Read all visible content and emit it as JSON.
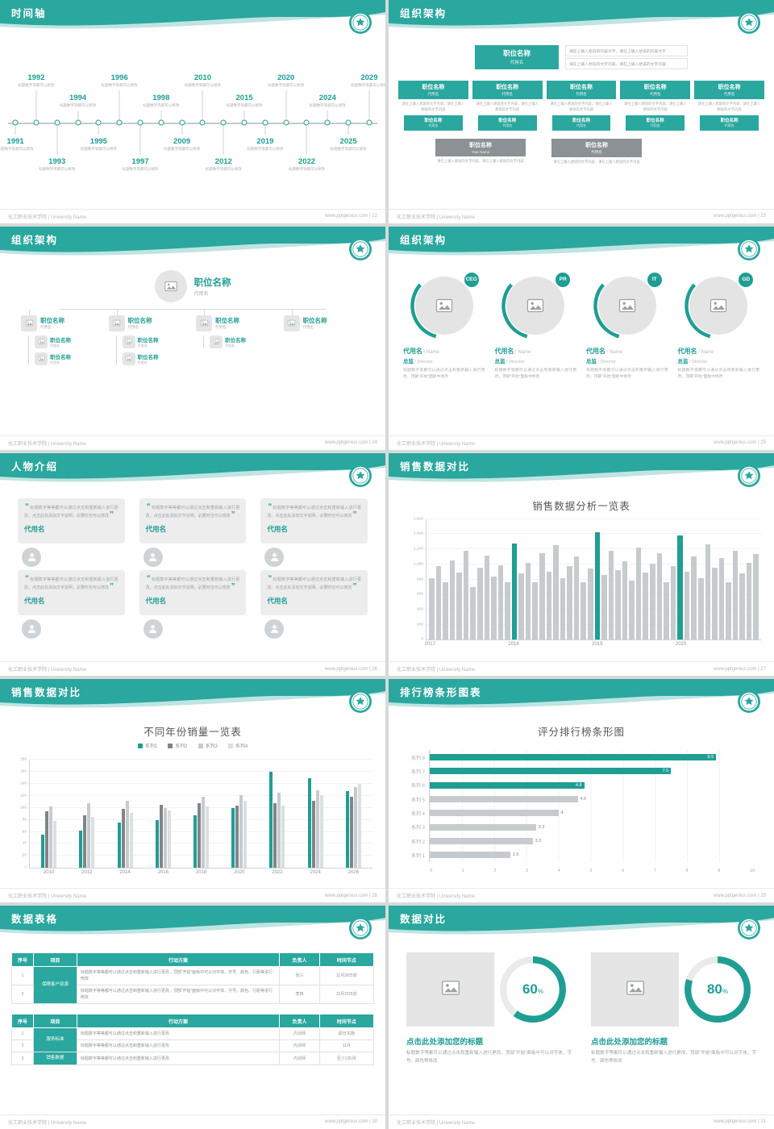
{
  "theme": {
    "teal": "#1f9e93",
    "teal_header": "#2aa79e",
    "gray_bar": "#c7cbcd",
    "gray_dark": "#808588",
    "gray_light": "#dcdfe0"
  },
  "footer": {
    "school": "化工职业技术学院 | University Name",
    "site": "www.pptgenius.com"
  },
  "slides": {
    "s22": {
      "title": "时间轴",
      "page": "22",
      "caption": "标题数字等都可以修改",
      "entries": [
        {
          "year": "1991",
          "side": "bottom",
          "level": 1
        },
        {
          "year": "1992",
          "side": "top",
          "level": 2
        },
        {
          "year": "1993",
          "side": "bottom",
          "level": 2
        },
        {
          "year": "1994",
          "side": "top",
          "level": 1
        },
        {
          "year": "1995",
          "side": "bottom",
          "level": 1
        },
        {
          "year": "1996",
          "side": "top",
          "level": 2
        },
        {
          "year": "1997",
          "side": "bottom",
          "level": 2
        },
        {
          "year": "1998",
          "side": "top",
          "level": 1
        },
        {
          "year": "2009",
          "side": "bottom",
          "level": 1
        },
        {
          "year": "2010",
          "side": "top",
          "level": 2
        },
        {
          "year": "2012",
          "side": "bottom",
          "level": 2
        },
        {
          "year": "2015",
          "side": "top",
          "level": 1
        },
        {
          "year": "2019",
          "side": "bottom",
          "level": 1
        },
        {
          "year": "2020",
          "side": "top",
          "level": 2
        },
        {
          "year": "2022",
          "side": "bottom",
          "level": 2
        },
        {
          "year": "2024",
          "side": "top",
          "level": 1
        },
        {
          "year": "2025",
          "side": "bottom",
          "level": 1
        },
        {
          "year": "2029",
          "side": "top",
          "level": 2
        }
      ]
    },
    "s23": {
      "title": "组织架构",
      "page": "23",
      "root_title": "职位名称",
      "root_sub": "代用名",
      "notes": [
        "请在上输入想说的内容文字，请在上输入想说的内容文字",
        "请在上输入想说的文字内容，请在上输入想说的文字内容"
      ],
      "columns": [
        {
          "title": "职位名称",
          "sub": "代用名",
          "body": "请在上输入想说的文字内容，请在上输入想说的文字内容",
          "chip_title": "职位名称",
          "chip_sub": "代用名"
        },
        {
          "title": "职位名称",
          "sub": "代用名",
          "body": "请在上输入想说的文字内容，请在上输入想说的文字内容",
          "chip_title": "职位名称",
          "chip_sub": "代用名"
        },
        {
          "title": "职位名称",
          "sub": "代用名",
          "body": "请在上输入想说的文字内容，请在上输入想说的文字内容",
          "chip_title": "职位名称",
          "chip_sub": "代用名"
        },
        {
          "title": "职位名称",
          "sub": "代用名",
          "body": "请在上输入想说的文字内容，请在上输入想说的文字内容",
          "chip_title": "职位名称",
          "chip_sub": "代用名"
        },
        {
          "title": "职位名称",
          "sub": "代用名",
          "body": "请在上输入想说的文字内容，请在上输入想说的文字内容",
          "chip_title": "职位名称",
          "chip_sub": "代用名"
        }
      ],
      "row2": [
        {
          "title": "职位名称",
          "sub": "Your Name",
          "body": "请在上输入想说的文字内容，请在上输入想说的文字内容"
        },
        {
          "title": "职位名称",
          "sub": "代用名",
          "body": "请在上输入想说的文字内容，请在上输入想说的文字内容"
        }
      ]
    },
    "s24": {
      "title": "组织架构",
      "page": "24",
      "root_title": "职位名称",
      "root_sub": "代用名",
      "nodes": [
        {
          "title": "职位名称",
          "sub": "代用名",
          "children": [
            {
              "title": "职位名称",
              "sub": "代用名"
            },
            {
              "title": "职位名称",
              "sub": "代用名"
            }
          ]
        },
        {
          "title": "职位名称",
          "sub": "代用名",
          "children": [
            {
              "title": "职位名称",
              "sub": "代用名"
            },
            {
              "title": "职位名称",
              "sub": "代用名"
            }
          ]
        },
        {
          "title": "职位名称",
          "sub": "代用名",
          "children": [
            {
              "title": "职位名称",
              "sub": "代用名"
            }
          ]
        },
        {
          "title": "职位名称",
          "sub": "代用名",
          "children": []
        }
      ]
    },
    "s25": {
      "title": "组织架构",
      "page": "25",
      "circles": [
        {
          "badge": "CEO",
          "name": "代用名",
          "name_en": "Name",
          "role": "总监",
          "role_en": "Director",
          "desc": "标题数字等都可以通过点击和重新输入进行更改，顶部“开始”面板中修改"
        },
        {
          "badge": "PR",
          "name": "代用名",
          "name_en": "Name",
          "role": "总监",
          "role_en": "Director",
          "desc": "标题数字等都可以通过点击和重新输入进行更改，顶部“开始”面板中修改"
        },
        {
          "badge": "IT",
          "name": "代用名",
          "name_en": "Name",
          "role": "总监",
          "role_en": "Director",
          "desc": "标题数字等都可以通过点击和重新输入进行更改，顶部“开始”面板中修改"
        },
        {
          "badge": "GD",
          "name": "代用名",
          "name_en": "Name",
          "role": "总监",
          "role_en": "Director",
          "desc": "标题数字等都可以通过点击和重新输入进行更改，顶部“开始”面板中修改"
        }
      ]
    },
    "s26": {
      "title": "人物介绍",
      "page": "26",
      "people": [
        {
          "name": "代用名",
          "text": "标题数字等等都可以通过点击和重新输入进行更改，点击此处添加文字说明，必要时也可以修改"
        },
        {
          "name": "代用名",
          "text": "标题数字等等都可以通过点击和重新输入进行更改，点击此处添加文字说明，必要时也可以修改"
        },
        {
          "name": "代用名",
          "text": "标题数字等等都可以通过点击和重新输入进行更改，点击此处添加文字说明，必要时也可以修改"
        },
        {
          "name": "代用名",
          "text": "标题数字等等都可以通过点击和重新输入进行更改，点击此处添加文字说明，必要时也可以修改"
        },
        {
          "name": "代用名",
          "text": "标题数字等等都可以通过点击和重新输入进行更改，点击此处添加文字说明，必要时也可以修改"
        },
        {
          "name": "代用名",
          "text": "标题数字等等都可以通过点击和重新输入进行更改，点击此处添加文字说明，必要时也可以修改"
        }
      ]
    },
    "s27": {
      "title": "销售数据对比",
      "page": "27"
    },
    "s28": {
      "title": "销售数据对比",
      "page": "28"
    },
    "s29": {
      "title": "排行榜条形图表",
      "page": "29"
    },
    "s30": {
      "title": "数据表格",
      "page": "30",
      "table1": {
        "headers": [
          "序号",
          "项目",
          "行动方案",
          "负责人",
          "时间节点"
        ],
        "col_widths": [
          "6%",
          "12%",
          "56%",
          "11%",
          "15%"
        ],
        "rows": [
          [
            {
              "t": "1"
            },
            {
              "t": "保障客户资源",
              "rs": 2,
              "k": "item"
            },
            {
              "t": "标题数字等等都可以通过点击和重新输入进行更改，顶部“开始”面板中可以对字体、字号、颜色、行距等进行修改",
              "k": "plan"
            },
            {
              "t": "张三"
            },
            {
              "t": "11月30日前"
            }
          ],
          [
            {
              "t": "2"
            },
            {
              "t": "标题数字等等都可以通过点击和重新输入进行更改，顶部“开始”面板中可以对字体、字号、颜色、行距等进行修改",
              "k": "plan"
            },
            {
              "t": "李四"
            },
            {
              "t": "11月15日前"
            }
          ]
        ]
      },
      "table2": {
        "headers": [
          "序号",
          "项目",
          "行动方案",
          "负责人",
          "时间节点"
        ],
        "col_widths": [
          "6%",
          "12%",
          "56%",
          "11%",
          "15%"
        ],
        "rows": [
          [
            {
              "t": "1"
            },
            {
              "t": "服务标准",
              "rs": 2,
              "k": "item"
            },
            {
              "t": "标题数字等等都可以通过点击和重新输入进行更改",
              "k": "plan"
            },
            {
              "t": "内训师"
            },
            {
              "t": "即日实施"
            }
          ],
          [
            {
              "t": "2"
            },
            {
              "t": "标题数字等等都可以通过点击和重新输入进行更改",
              "k": "plan"
            },
            {
              "t": "内训师"
            },
            {
              "t": "11月"
            }
          ],
          [
            {
              "t": "3"
            },
            {
              "t": "销售数据",
              "k": "item"
            },
            {
              "t": "标题数字等等都可以通过点击和重新输入进行更改",
              "k": "plan"
            },
            {
              "t": "内训师"
            },
            {
              "t": "至少1次/月"
            }
          ]
        ]
      }
    },
    "s31": {
      "title": "数据对比",
      "page": "31",
      "title_text": "点击此处添加您的标题",
      "desc_text": "标题数字等都可以通过点击和重新输入进行更改，顶部“开始”面板中可以对字体、字号、颜色等修改"
    }
  },
  "chart_data": [
    {
      "id": "sales-analysis",
      "type": "bar",
      "title": "销售数据分析一览表",
      "ylim": [
        0,
        1600
      ],
      "yticks": [
        "0",
        "200",
        "400",
        "600",
        "800",
        "1,000",
        "1,200",
        "1,400",
        "1,600"
      ],
      "x_groups": [
        "2017",
        "2018",
        "2019",
        "2020"
      ],
      "group_positions": [
        0,
        12,
        24,
        36
      ],
      "highlight_indices": [
        12,
        24,
        36
      ],
      "values": [
        820,
        980,
        760,
        1050,
        890,
        1180,
        700,
        950,
        1120,
        840,
        990,
        760,
        1280,
        880,
        1020,
        760,
        1150,
        900,
        1250,
        820,
        980,
        1100,
        760,
        940,
        1430,
        860,
        1180,
        920,
        1040,
        780,
        1220,
        890,
        1010,
        1150,
        760,
        980,
        1380,
        900,
        1100,
        820,
        1260,
        950,
        1080,
        760,
        1180,
        880,
        1020,
        1140
      ]
    },
    {
      "id": "yearly-sales",
      "type": "bar",
      "title": "不同年份销量一览表",
      "ylim": [
        0,
        180
      ],
      "ytick_step": 20,
      "categories": [
        "2010",
        "2012",
        "2014",
        "2016",
        "2018",
        "2020",
        "2022",
        "2024",
        "2026"
      ],
      "series": [
        {
          "name": "系列1",
          "color": "#1f9e93",
          "values": [
            55,
            62,
            75,
            80,
            88,
            100,
            160,
            150,
            128
          ]
        },
        {
          "name": "系列2",
          "color": "#808588",
          "values": [
            95,
            88,
            98,
            105,
            108,
            104,
            108,
            112,
            118
          ]
        },
        {
          "name": "系列3",
          "color": "#c7cbcd",
          "values": [
            102,
            108,
            112,
            100,
            118,
            122,
            126,
            130,
            135
          ]
        },
        {
          "name": "系列4",
          "color": "#dcdfe0",
          "values": [
            78,
            85,
            92,
            96,
            102,
            112,
            104,
            122,
            140
          ]
        }
      ]
    },
    {
      "id": "score-ranking",
      "type": "bar",
      "orientation": "horizontal",
      "title": "评分排行榜条形图",
      "xlim": [
        0,
        10
      ],
      "xticks": [
        0,
        1,
        2,
        3,
        4,
        5,
        6,
        7,
        8,
        9,
        10
      ],
      "categories": [
        "系列 8",
        "系列 7",
        "系列 6",
        "系列 5",
        "系列 4",
        "系列 3",
        "系列 2",
        "系列 1"
      ],
      "values": [
        8.9,
        7.5,
        4.8,
        4.6,
        4,
        3.3,
        3.2,
        2.5
      ],
      "colors": [
        "#1f9e93",
        "#1f9e93",
        "#1f9e93",
        "#c7cbcd",
        "#c7cbcd",
        "#c7cbcd",
        "#c7cbcd",
        "#c7cbcd"
      ]
    },
    {
      "id": "percent-comparison",
      "type": "donut",
      "values": [
        60,
        80
      ],
      "unit": "%",
      "ring_color": "#1f9e93",
      "track_color": "#e9eaea"
    }
  ]
}
